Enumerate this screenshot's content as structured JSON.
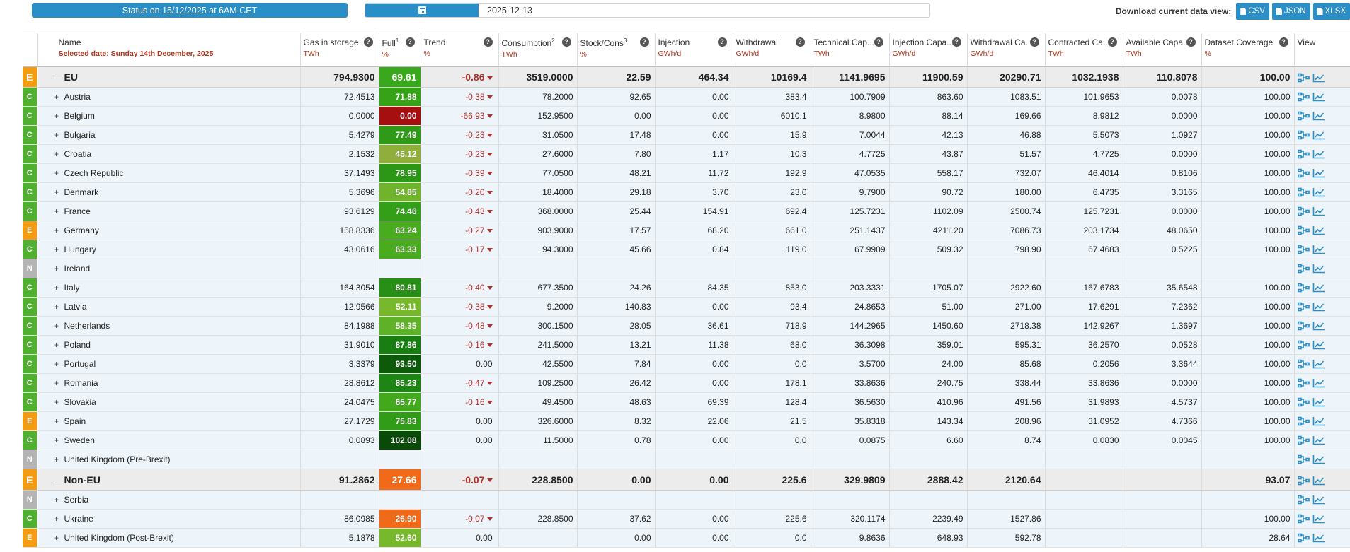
{
  "header": {
    "status_text": "Status on 15/12/2025 at 6AM CET",
    "date_value": "2025-12-13",
    "calendar_icon": "calendar-icon",
    "download_label": "Download current data view:",
    "download_buttons": [
      "CSV",
      "JSON",
      "XLSX"
    ]
  },
  "columns": [
    {
      "name": "Name",
      "unit": "Selected date: Sunday 14th December, 2025"
    },
    {
      "name": "Gas in storage",
      "unit": "TWh"
    },
    {
      "name": "Full",
      "sup": "1",
      "unit": "%"
    },
    {
      "name": "Trend",
      "unit": "%"
    },
    {
      "name": "Consumption",
      "sup": "2",
      "unit": "TWh"
    },
    {
      "name": "Stock/Cons",
      "sup": "3",
      "unit": "%"
    },
    {
      "name": "Injection",
      "unit": "GWh/d"
    },
    {
      "name": "Withdrawal",
      "unit": "GWh/d"
    },
    {
      "name": "Technical Cap...",
      "unit": "TWh"
    },
    {
      "name": "Injection Capa...",
      "unit": "GWh/d"
    },
    {
      "name": "Withdrawal Ca...",
      "unit": "GWh/d"
    },
    {
      "name": "Contracted Ca...",
      "unit": "TWh"
    },
    {
      "name": "Available Capa...",
      "unit": "TWh"
    },
    {
      "name": "Dataset Coverage",
      "unit": "%"
    },
    {
      "name": "View",
      "unit": ""
    }
  ],
  "colors": {
    "accent": "#2b8fc7",
    "code_C": "#4fb030",
    "code_E": "#f39c11",
    "code_N": "#b4b4b4",
    "trend_negative": "#b0302a"
  },
  "rows": [
    {
      "type": "group",
      "code": "E",
      "name": "EU",
      "gas": "794.9300",
      "full": "69.61",
      "fullColor": "#3aa81d",
      "trend": "-0.86",
      "trendDir": "down",
      "cons": "3519.0000",
      "stock": "22.59",
      "inj": "464.34",
      "wd": "10169.4",
      "tech": "1141.9695",
      "injCap": "11900.59",
      "wdCap": "20290.71",
      "contr": "1032.1938",
      "avail": "110.8078",
      "cov": "100.00"
    },
    {
      "type": "country",
      "code": "C",
      "name": "Austria",
      "gas": "72.4513",
      "full": "71.88",
      "fullColor": "#36a218",
      "trend": "-0.38",
      "trendDir": "down",
      "cons": "78.2000",
      "stock": "92.65",
      "inj": "0.00",
      "wd": "383.4",
      "tech": "100.7909",
      "injCap": "863.60",
      "wdCap": "1083.51",
      "contr": "101.9653",
      "avail": "0.0078",
      "cov": "100.00"
    },
    {
      "type": "country",
      "code": "C",
      "name": "Belgium",
      "gas": "0.0000",
      "full": "0.00",
      "fullColor": "#a50f0f",
      "trend": "-66.93",
      "trendDir": "down",
      "cons": "152.9500",
      "stock": "0.00",
      "inj": "0.00",
      "wd": "6010.1",
      "tech": "8.9800",
      "injCap": "88.14",
      "wdCap": "169.66",
      "contr": "8.9812",
      "avail": "0.0000",
      "cov": "100.00"
    },
    {
      "type": "country",
      "code": "C",
      "name": "Bulgaria",
      "gas": "5.4279",
      "full": "77.49",
      "fullColor": "#2f9a18",
      "trend": "-0.23",
      "trendDir": "down",
      "cons": "31.0500",
      "stock": "17.48",
      "inj": "0.00",
      "wd": "15.9",
      "tech": "7.0044",
      "injCap": "42.13",
      "wdCap": "46.88",
      "contr": "5.5073",
      "avail": "1.0927",
      "cov": "100.00"
    },
    {
      "type": "country",
      "code": "C",
      "name": "Croatia",
      "gas": "2.1532",
      "full": "45.12",
      "fullColor": "#8fae3c",
      "trend": "-0.23",
      "trendDir": "down",
      "cons": "27.6000",
      "stock": "7.80",
      "inj": "1.17",
      "wd": "10.3",
      "tech": "4.7725",
      "injCap": "43.87",
      "wdCap": "51.57",
      "contr": "4.7725",
      "avail": "0.0000",
      "cov": "100.00"
    },
    {
      "type": "country",
      "code": "C",
      "name": "Czech Republic",
      "gas": "37.1493",
      "full": "78.95",
      "fullColor": "#2c9616",
      "trend": "-0.39",
      "trendDir": "down",
      "cons": "77.0500",
      "stock": "48.21",
      "inj": "11.72",
      "wd": "192.9",
      "tech": "47.0535",
      "injCap": "558.17",
      "wdCap": "732.07",
      "contr": "46.4014",
      "avail": "0.8106",
      "cov": "100.00"
    },
    {
      "type": "country",
      "code": "C",
      "name": "Denmark",
      "gas": "5.3696",
      "full": "54.85",
      "fullColor": "#6fb42a",
      "trend": "-0.20",
      "trendDir": "down",
      "cons": "18.4000",
      "stock": "29.18",
      "inj": "3.70",
      "wd": "23.0",
      "tech": "9.7900",
      "injCap": "90.72",
      "wdCap": "180.00",
      "contr": "6.4735",
      "avail": "3.3165",
      "cov": "100.00"
    },
    {
      "type": "country",
      "code": "C",
      "name": "France",
      "gas": "93.6129",
      "full": "74.46",
      "fullColor": "#339e18",
      "trend": "-0.43",
      "trendDir": "down",
      "cons": "368.0000",
      "stock": "25.44",
      "inj": "154.91",
      "wd": "692.4",
      "tech": "125.7231",
      "injCap": "1102.09",
      "wdCap": "2500.74",
      "contr": "125.7231",
      "avail": "0.0000",
      "cov": "100.00"
    },
    {
      "type": "country",
      "code": "E",
      "name": "Germany",
      "gas": "158.8336",
      "full": "63.24",
      "fullColor": "#49ac1f",
      "trend": "-0.27",
      "trendDir": "down",
      "cons": "903.9000",
      "stock": "17.57",
      "inj": "68.20",
      "wd": "661.0",
      "tech": "251.1437",
      "injCap": "4211.20",
      "wdCap": "7086.73",
      "contr": "203.1734",
      "avail": "48.0650",
      "cov": "100.00"
    },
    {
      "type": "country",
      "code": "C",
      "name": "Hungary",
      "gas": "43.0616",
      "full": "63.33",
      "fullColor": "#49ac1f",
      "trend": "-0.17",
      "trendDir": "down",
      "cons": "94.3000",
      "stock": "45.66",
      "inj": "0.84",
      "wd": "119.0",
      "tech": "67.9909",
      "injCap": "509.32",
      "wdCap": "798.90",
      "contr": "67.4683",
      "avail": "0.5225",
      "cov": "100.00"
    },
    {
      "type": "country",
      "code": "N",
      "name": "Ireland",
      "gas": "",
      "full": "",
      "fullColor": "",
      "trend": "",
      "trendDir": "",
      "cons": "",
      "stock": "",
      "inj": "",
      "wd": "",
      "tech": "",
      "injCap": "",
      "wdCap": "",
      "contr": "",
      "avail": "",
      "cov": ""
    },
    {
      "type": "country",
      "code": "C",
      "name": "Italy",
      "gas": "164.3054",
      "full": "80.81",
      "fullColor": "#278f15",
      "trend": "-0.40",
      "trendDir": "down",
      "cons": "677.3500",
      "stock": "24.26",
      "inj": "84.35",
      "wd": "853.0",
      "tech": "203.3331",
      "injCap": "1705.07",
      "wdCap": "2922.60",
      "contr": "167.6783",
      "avail": "35.6548",
      "cov": "100.00"
    },
    {
      "type": "country",
      "code": "C",
      "name": "Latvia",
      "gas": "12.9566",
      "full": "52.11",
      "fullColor": "#77b82c",
      "trend": "-0.38",
      "trendDir": "down",
      "cons": "9.2000",
      "stock": "140.83",
      "inj": "0.00",
      "wd": "93.4",
      "tech": "24.8653",
      "injCap": "51.00",
      "wdCap": "271.00",
      "contr": "17.6291",
      "avail": "7.2362",
      "cov": "100.00"
    },
    {
      "type": "country",
      "code": "C",
      "name": "Netherlands",
      "gas": "84.1988",
      "full": "58.35",
      "fullColor": "#5fb127",
      "trend": "-0.48",
      "trendDir": "down",
      "cons": "300.1500",
      "stock": "28.05",
      "inj": "36.61",
      "wd": "718.9",
      "tech": "144.2965",
      "injCap": "1450.60",
      "wdCap": "2718.38",
      "contr": "142.9267",
      "avail": "1.3697",
      "cov": "100.00"
    },
    {
      "type": "country",
      "code": "C",
      "name": "Poland",
      "gas": "31.9010",
      "full": "87.86",
      "fullColor": "#187e12",
      "trend": "-0.16",
      "trendDir": "down",
      "cons": "241.5000",
      "stock": "13.21",
      "inj": "11.38",
      "wd": "68.0",
      "tech": "36.3098",
      "injCap": "359.01",
      "wdCap": "595.31",
      "contr": "36.2570",
      "avail": "0.0528",
      "cov": "100.00"
    },
    {
      "type": "country",
      "code": "C",
      "name": "Portugal",
      "gas": "3.3379",
      "full": "93.50",
      "fullColor": "#0d5a0a",
      "trend": "0.00",
      "trendDir": "",
      "cons": "42.5500",
      "stock": "7.84",
      "inj": "0.00",
      "wd": "0.0",
      "tech": "3.5700",
      "injCap": "24.00",
      "wdCap": "85.68",
      "contr": "0.2056",
      "avail": "3.3644",
      "cov": "100.00"
    },
    {
      "type": "country",
      "code": "C",
      "name": "Romania",
      "gas": "28.8612",
      "full": "85.23",
      "fullColor": "#1d8513",
      "trend": "-0.47",
      "trendDir": "down",
      "cons": "109.2500",
      "stock": "26.42",
      "inj": "0.00",
      "wd": "178.1",
      "tech": "33.8636",
      "injCap": "240.75",
      "wdCap": "338.44",
      "contr": "33.8636",
      "avail": "0.0000",
      "cov": "100.00"
    },
    {
      "type": "country",
      "code": "C",
      "name": "Slovakia",
      "gas": "24.0475",
      "full": "65.77",
      "fullColor": "#42a91d",
      "trend": "-0.16",
      "trendDir": "down",
      "cons": "49.4500",
      "stock": "48.63",
      "inj": "69.39",
      "wd": "128.4",
      "tech": "36.5630",
      "injCap": "410.96",
      "wdCap": "491.56",
      "contr": "31.9893",
      "avail": "4.5737",
      "cov": "100.00"
    },
    {
      "type": "country",
      "code": "E",
      "name": "Spain",
      "gas": "27.1729",
      "full": "75.83",
      "fullColor": "#319c17",
      "trend": "0.00",
      "trendDir": "",
      "cons": "326.6000",
      "stock": "8.32",
      "inj": "22.06",
      "wd": "21.5",
      "tech": "35.8318",
      "injCap": "143.34",
      "wdCap": "208.96",
      "contr": "31.0952",
      "avail": "4.7366",
      "cov": "100.00"
    },
    {
      "type": "country",
      "code": "C",
      "name": "Sweden",
      "gas": "0.0893",
      "full": "102.08",
      "fullColor": "#084a07",
      "trend": "0.00",
      "trendDir": "",
      "cons": "11.5000",
      "stock": "0.78",
      "inj": "0.00",
      "wd": "0.0",
      "tech": "0.0875",
      "injCap": "6.60",
      "wdCap": "8.74",
      "contr": "0.0830",
      "avail": "0.0045",
      "cov": "100.00"
    },
    {
      "type": "country",
      "code": "N",
      "name": "United Kingdom (Pre-Brexit)",
      "gas": "",
      "full": "",
      "fullColor": "",
      "trend": "",
      "trendDir": "",
      "cons": "",
      "stock": "",
      "inj": "",
      "wd": "",
      "tech": "",
      "injCap": "",
      "wdCap": "",
      "contr": "",
      "avail": "",
      "cov": ""
    },
    {
      "type": "group",
      "code": "E",
      "name": "Non-EU",
      "gas": "91.2862",
      "full": "27.66",
      "fullColor": "#f06a1a",
      "trend": "-0.07",
      "trendDir": "down",
      "cons": "228.8500",
      "stock": "0.00",
      "inj": "0.00",
      "wd": "225.6",
      "tech": "329.9809",
      "injCap": "2888.42",
      "wdCap": "2120.64",
      "contr": "",
      "avail": "",
      "cov": "93.07"
    },
    {
      "type": "country",
      "code": "N",
      "name": "Serbia",
      "gas": "",
      "full": "",
      "fullColor": "",
      "trend": "",
      "trendDir": "",
      "cons": "",
      "stock": "",
      "inj": "",
      "wd": "",
      "tech": "",
      "injCap": "",
      "wdCap": "",
      "contr": "",
      "avail": "",
      "cov": ""
    },
    {
      "type": "country",
      "code": "C",
      "name": "Ukraine",
      "gas": "86.0985",
      "full": "26.90",
      "fullColor": "#f06a1a",
      "trend": "-0.07",
      "trendDir": "down",
      "cons": "228.8500",
      "stock": "37.62",
      "inj": "0.00",
      "wd": "225.6",
      "tech": "320.1174",
      "injCap": "2239.49",
      "wdCap": "1527.86",
      "contr": "",
      "avail": "",
      "cov": "100.00"
    },
    {
      "type": "country",
      "code": "E",
      "name": "United Kingdom (Post-Brexit)",
      "gas": "5.1878",
      "full": "52.60",
      "fullColor": "#77b82c",
      "trend": "0.00",
      "trendDir": "",
      "cons": "",
      "stock": "0.00",
      "inj": "0.00",
      "wd": "0.0",
      "tech": "9.8636",
      "injCap": "648.93",
      "wdCap": "592.78",
      "contr": "",
      "avail": "",
      "cov": "28.64"
    }
  ]
}
